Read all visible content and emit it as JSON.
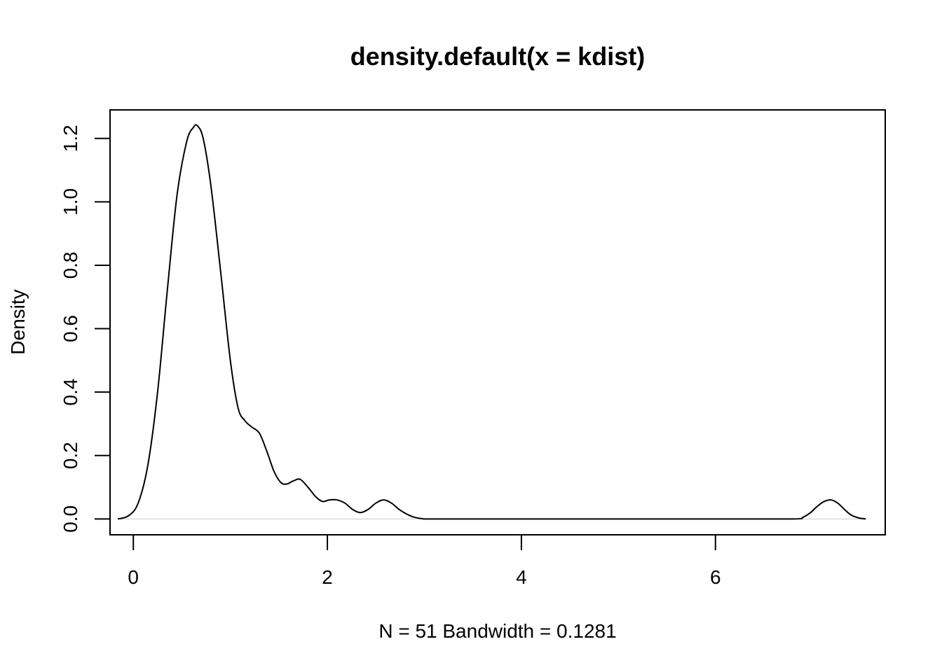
{
  "chart_data": {
    "type": "line",
    "title": "density.default(x = kdist)",
    "xlabel": "N = 51   Bandwidth = 0.1281",
    "ylabel": "Density",
    "xlim": [
      -0.24,
      7.75
    ],
    "ylim": [
      -0.05,
      1.29
    ],
    "x_ticks": [
      0,
      2,
      4,
      6
    ],
    "x_tick_labels": [
      "0",
      "2",
      "4",
      "6"
    ],
    "y_ticks": [
      0.0,
      0.2,
      0.4,
      0.6,
      0.8,
      1.0,
      1.2
    ],
    "y_tick_labels": [
      "0.0",
      "0.2",
      "0.4",
      "0.6",
      "0.8",
      "1.0",
      "1.2"
    ],
    "grid": false,
    "baseline_y": 0,
    "series": [
      {
        "color": "#000000",
        "x": [
          -0.16,
          -0.05,
          0.05,
          0.15,
          0.25,
          0.35,
          0.45,
          0.55,
          0.62,
          0.66,
          0.72,
          0.8,
          0.9,
          1.0,
          1.08,
          1.15,
          1.22,
          1.3,
          1.38,
          1.45,
          1.52,
          1.58,
          1.65,
          1.72,
          1.8,
          1.88,
          1.95,
          2.02,
          2.1,
          2.18,
          2.26,
          2.34,
          2.42,
          2.5,
          2.58,
          2.66,
          2.74,
          2.82,
          2.9,
          3.0,
          3.2,
          4.0,
          5.0,
          6.0,
          6.8,
          6.9,
          6.98,
          7.05,
          7.12,
          7.19,
          7.26,
          7.33,
          7.4,
          7.48,
          7.55
        ],
        "y": [
          0.0,
          0.01,
          0.05,
          0.17,
          0.4,
          0.72,
          1.02,
          1.19,
          1.235,
          1.24,
          1.2,
          1.05,
          0.78,
          0.5,
          0.35,
          0.31,
          0.29,
          0.27,
          0.21,
          0.15,
          0.115,
          0.11,
          0.12,
          0.125,
          0.1,
          0.07,
          0.055,
          0.06,
          0.06,
          0.05,
          0.03,
          0.02,
          0.03,
          0.05,
          0.06,
          0.05,
          0.03,
          0.015,
          0.005,
          0.0,
          0.0,
          0.0,
          0.0,
          0.0,
          0.0,
          0.005,
          0.02,
          0.04,
          0.055,
          0.06,
          0.05,
          0.03,
          0.012,
          0.003,
          0.0
        ]
      }
    ]
  }
}
